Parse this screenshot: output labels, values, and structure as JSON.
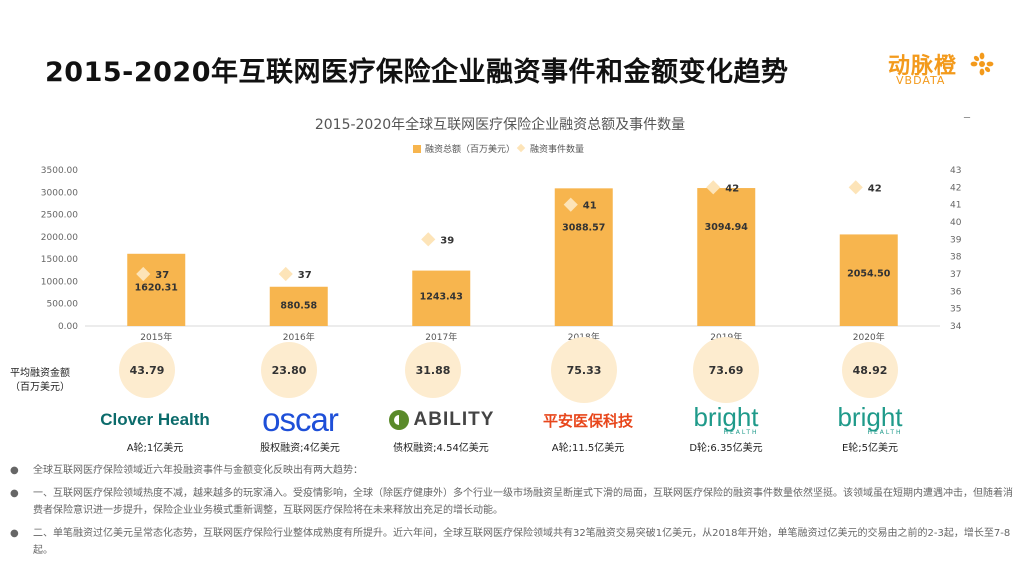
{
  "page": {
    "title": "2015-2020年互联网医疗保险企业融资事件和金额变化趋势",
    "logo_cn": "动脉橙",
    "logo_en": "VBDATA",
    "corner_mark": "_"
  },
  "chart_data": {
    "type": "bar",
    "title": "2015-2020年全球互联网医疗保险企业融资总额及事件数量",
    "categories": [
      "2015年",
      "2016年",
      "2017年",
      "2018年",
      "2019年",
      "2020年"
    ],
    "series": [
      {
        "name": "融资总额（百万美元）",
        "type": "bar",
        "axis": "left",
        "values": [
          1620.31,
          880.58,
          1243.43,
          3088.57,
          3094.94,
          2054.5
        ],
        "labels": [
          "1620.31",
          "880.58",
          "1243.43",
          "3088.57",
          "3094.94",
          "2054.50"
        ]
      },
      {
        "name": "融资事件数量",
        "type": "scatter",
        "axis": "right",
        "values": [
          37,
          37,
          39,
          41,
          42,
          42
        ]
      }
    ],
    "left_axis": {
      "min": 0,
      "max": 3500,
      "ticks": [
        "0.00",
        "500.00",
        "1000.00",
        "1500.00",
        "2000.00",
        "2500.00",
        "3000.00",
        "3500.00"
      ]
    },
    "right_axis": {
      "min": 34,
      "max": 43,
      "ticks": [
        "34",
        "35",
        "36",
        "37",
        "38",
        "39",
        "40",
        "41",
        "42",
        "43"
      ]
    },
    "legend": "top-center",
    "grid": false,
    "colors": {
      "bar": "#f7b54e",
      "marker": "#fde4b8"
    }
  },
  "avg": {
    "label_line1": "平均融资金额",
    "label_line2": "（百万美元）",
    "values": [
      "43.79",
      "23.80",
      "31.88",
      "75.33",
      "73.69",
      "48.92"
    ]
  },
  "companies": [
    {
      "name": "Clover Health",
      "caption": "A轮;1亿美元"
    },
    {
      "name": "oscar",
      "caption": "股权融资;4亿美元"
    },
    {
      "name": "ABILITY",
      "caption": "债权融资;4.54亿美元"
    },
    {
      "name": "平安医保科技",
      "caption": "A轮;11.5亿美元"
    },
    {
      "name": "bright",
      "sub": "HEALTH",
      "caption": "D轮;6.35亿美元"
    },
    {
      "name": "bright",
      "sub": "HEALTH",
      "caption": "E轮;5亿美元"
    }
  ],
  "notes": [
    "全球互联网医疗保险领域近六年投融资事件与金额变化反映出有两大趋势：",
    "一、互联网医疗保险领域热度不减，越来越多的玩家涌入。受疫情影响，全球（除医疗健康外）多个行业一级市场融资呈断崖式下滑的局面，互联网医疗保险的融资事件数量依然坚挺。该领域虽在短期内遭遇冲击，但随着消费者保险意识进一步提升，保险企业业务模式重新调整，互联网医疗保险将在未来释放出充足的增长动能。",
    "二、单笔融资过亿美元呈常态化态势，互联网医疗保险行业整体成熟度有所提升。近六年间，全球互联网医疗保险领域共有32笔融资交易突破1亿美元，从2018年开始，单笔融资过亿美元的交易由之前的2-3起，增长至7-8起。"
  ]
}
